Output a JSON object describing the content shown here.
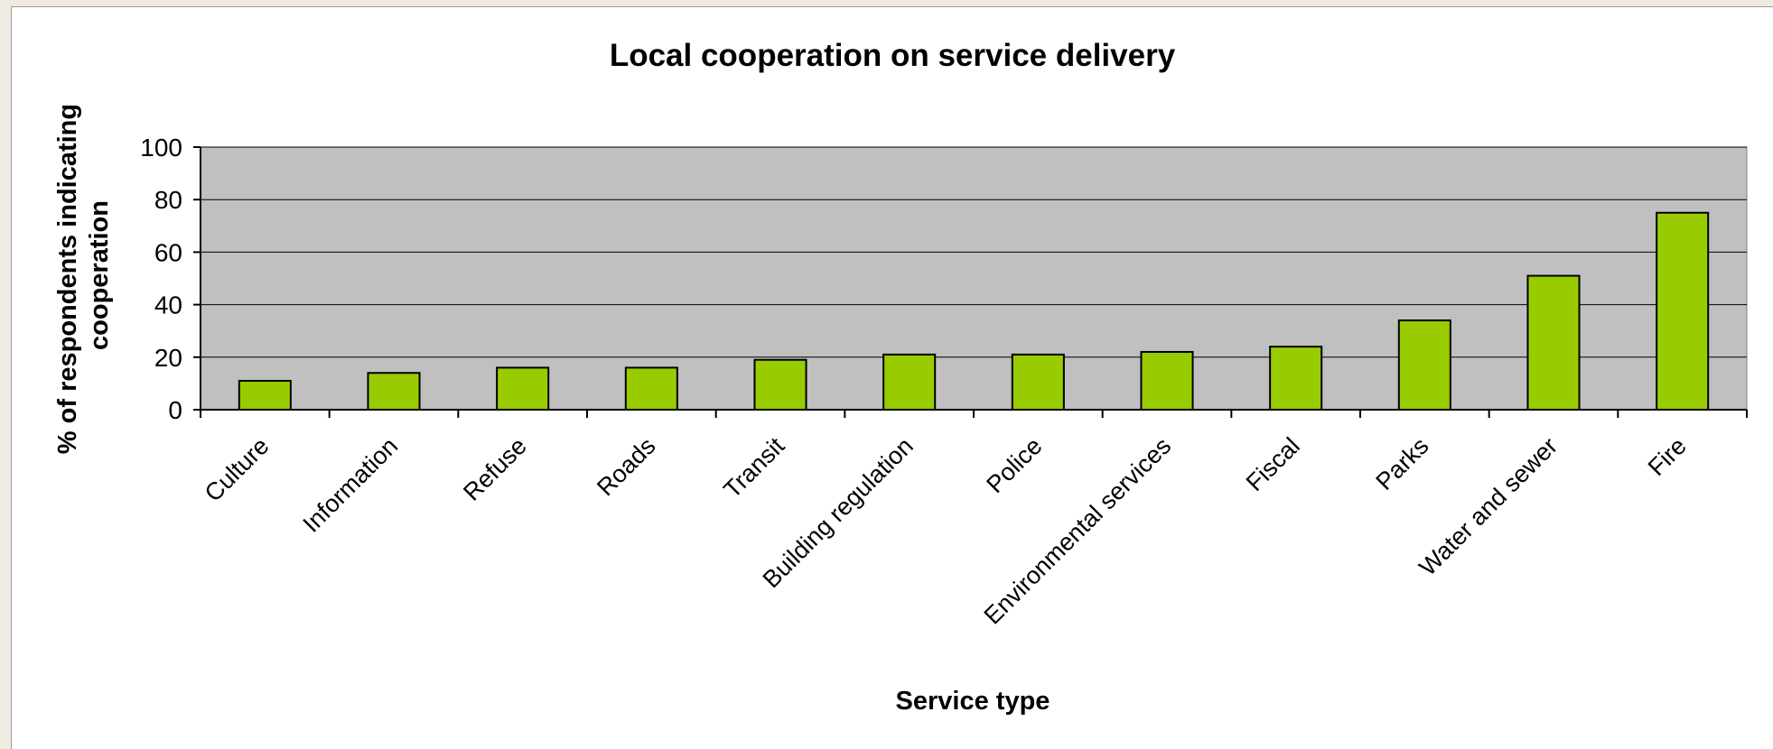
{
  "chart_data": {
    "type": "bar",
    "title": "Local cooperation on service delivery",
    "xlabel": "Service type",
    "ylabel_lines": [
      "% of respondents indicating",
      "cooperation"
    ],
    "categories": [
      "Culture",
      "Information",
      "Refuse",
      "Roads",
      "Transit",
      "Building regulation",
      "Police",
      "Environmental services",
      "Fiscal",
      "Parks",
      "Water and sewer",
      "Fire"
    ],
    "values": [
      11,
      14,
      16,
      16,
      19,
      21,
      21,
      22,
      24,
      34,
      51,
      75
    ],
    "ylim": [
      0,
      100
    ],
    "yticks": [
      "0",
      "20",
      "40",
      "60",
      "80",
      "100"
    ],
    "grid": true,
    "legend": "none",
    "colors": {
      "bar_fill": "#99cc00",
      "bar_stroke": "#000000",
      "plot_background": "#c0c0c0",
      "gridline": "#000000"
    }
  }
}
